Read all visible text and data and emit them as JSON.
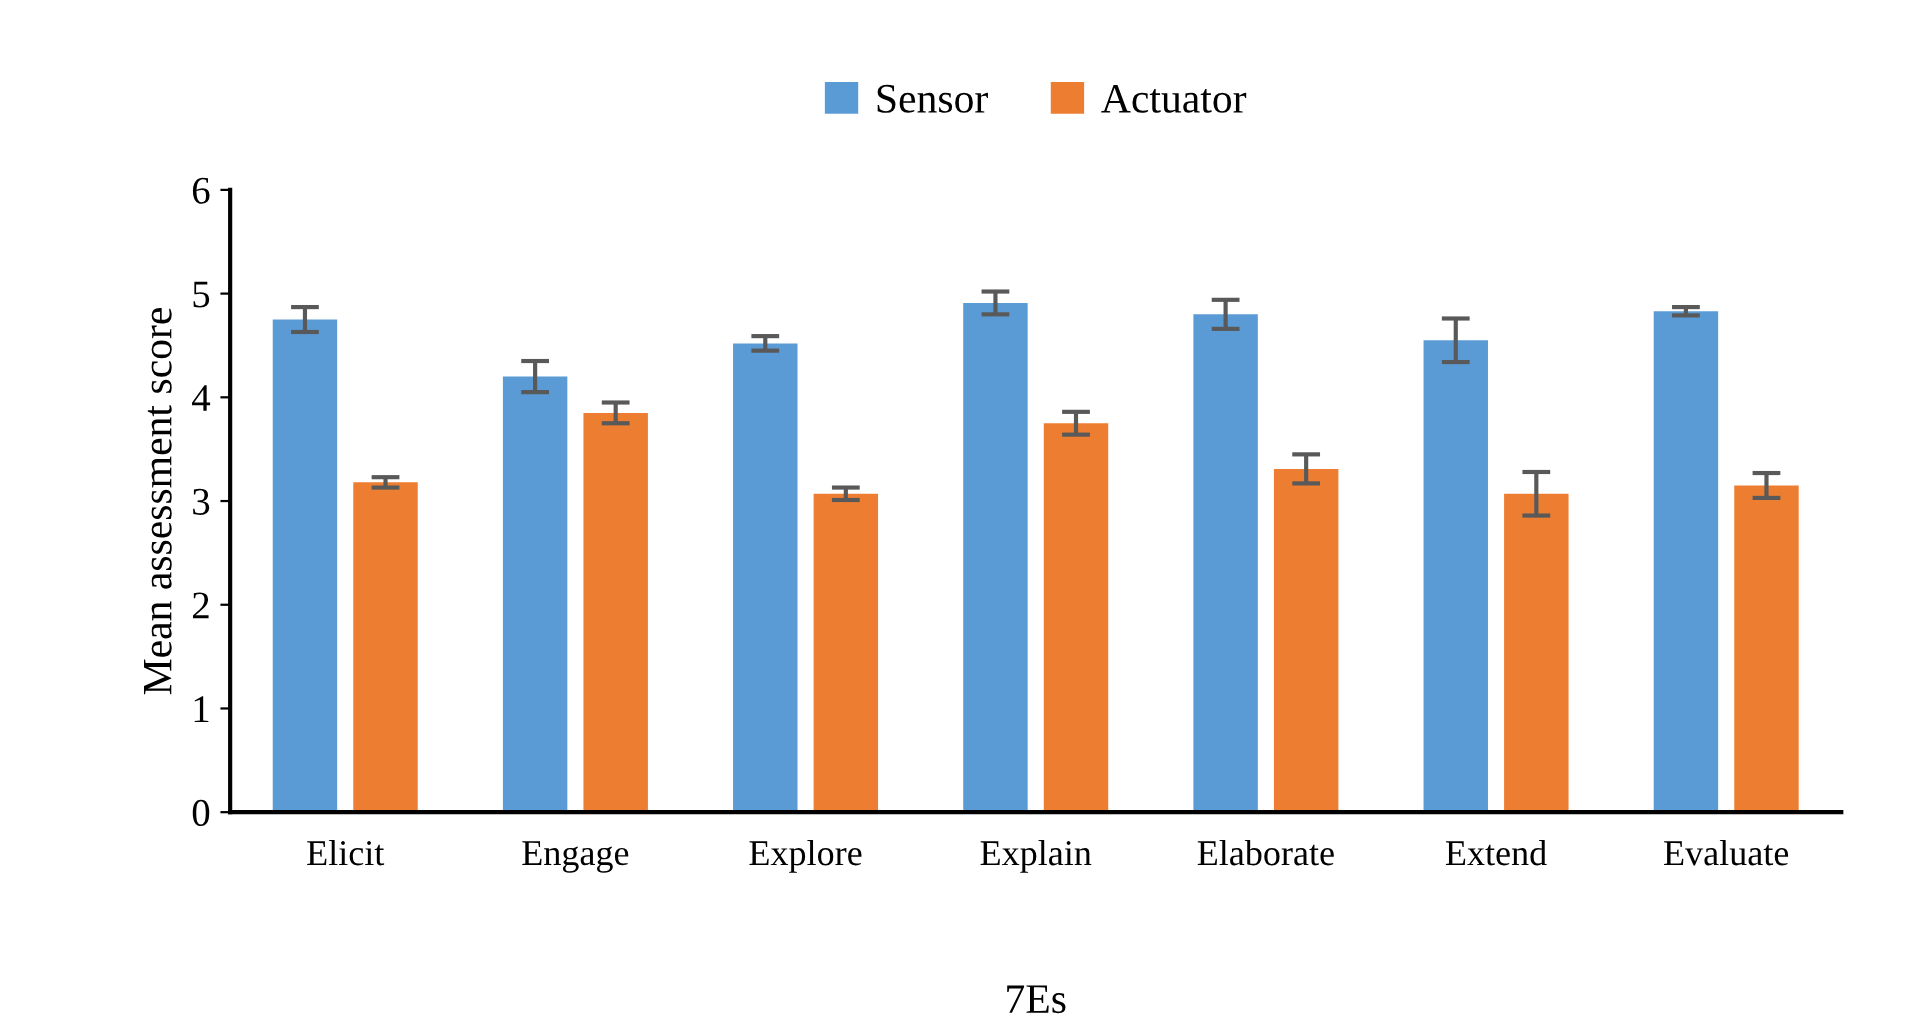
{
  "chart_data": {
    "type": "bar",
    "xlabel": "7Es",
    "ylabel": "Mean assessment score",
    "categories": [
      "Elicit",
      "Engage",
      "Explore",
      "Explain",
      "Elaborate",
      "Extend",
      "Evaluate"
    ],
    "series": [
      {
        "name": "Sensor",
        "color": "#5b9bd5",
        "values": [
          4.75,
          4.2,
          4.52,
          4.91,
          4.8,
          4.55,
          4.83
        ],
        "errors": [
          0.12,
          0.15,
          0.07,
          0.11,
          0.14,
          0.21,
          0.04
        ]
      },
      {
        "name": "Actuator",
        "color": "#ed7d31",
        "values": [
          3.18,
          3.85,
          3.07,
          3.75,
          3.31,
          3.07,
          3.15
        ],
        "errors": [
          0.05,
          0.1,
          0.06,
          0.11,
          0.14,
          0.21,
          0.12
        ]
      }
    ],
    "ylim": [
      0,
      6
    ],
    "yticks": [
      0,
      1,
      2,
      3,
      4,
      5,
      6
    ],
    "grid": false,
    "legend": "top"
  }
}
